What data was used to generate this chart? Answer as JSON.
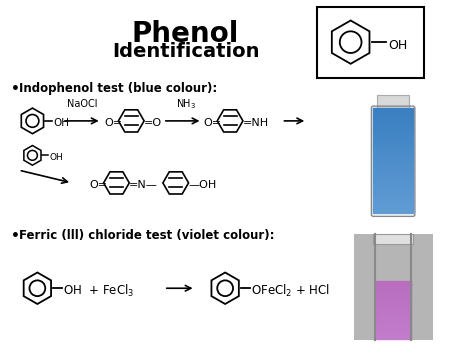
{
  "title": "Phenol",
  "subtitle": "Identification",
  "bg_color": "#ffffff",
  "title_fontsize": 20,
  "subtitle_fontsize": 14,
  "bullet1": "Indophenol test (blue colour):",
  "bullet2": "Ferric (lll) chloride test (violet colour):",
  "tube1_color_main": "#3a7fc1",
  "tube1_color_light": "#6aafd6",
  "tube2_color_main": "#c080c8",
  "tube2_color_light": "#d8a0d8",
  "tube2_color_bg": "#b8b8b8"
}
